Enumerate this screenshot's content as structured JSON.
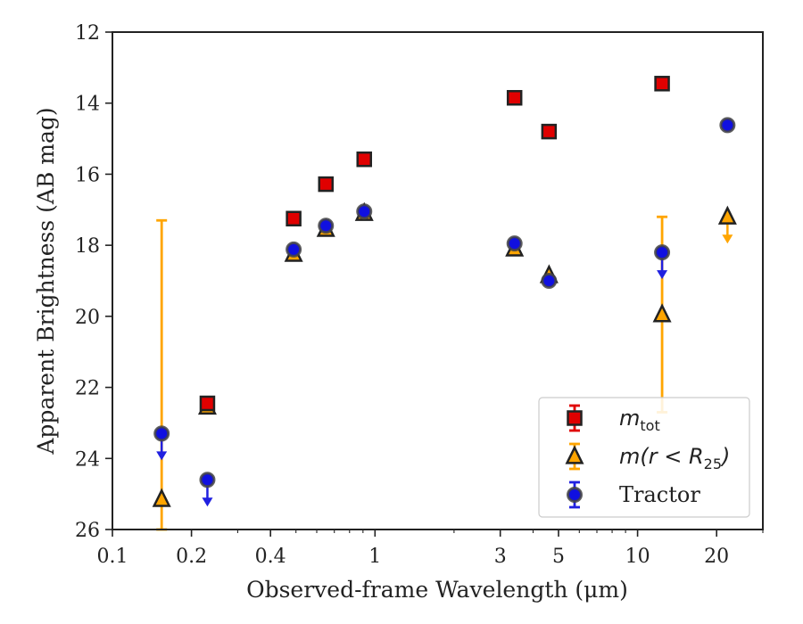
{
  "chart_data": {
    "type": "scatter",
    "title": "",
    "xlabel": "Observed-frame Wavelength (μm)",
    "ylabel": "Apparent Brightness (AB mag)",
    "xscale": "log",
    "xlim": [
      0.1,
      30
    ],
    "ylim": [
      26,
      12
    ],
    "y_inverted": true,
    "xticks": [
      0.1,
      0.2,
      0.4,
      1,
      3,
      5,
      10,
      20
    ],
    "xtick_labels": [
      "0.1",
      "0.2",
      "0.4",
      "1",
      "3",
      "5",
      "10",
      "20"
    ],
    "yticks": [
      12,
      14,
      16,
      18,
      20,
      22,
      24,
      26
    ],
    "ytick_labels": [
      "12",
      "14",
      "16",
      "18",
      "20",
      "22",
      "24",
      "26"
    ],
    "grid": false,
    "legend_position": "lower-right",
    "series": [
      {
        "name": "m_tot",
        "legend_main": "m",
        "legend_sub": "tot",
        "marker": "square",
        "color": "#e00000",
        "edge_color": "#222222",
        "errorbar_color": "#e00000",
        "points": [
          {
            "x": 0.23,
            "y": 22.45
          },
          {
            "x": 0.49,
            "y": 17.25
          },
          {
            "x": 0.65,
            "y": 16.28
          },
          {
            "x": 0.91,
            "y": 15.58
          },
          {
            "x": 3.4,
            "y": 13.85
          },
          {
            "x": 4.6,
            "y": 14.8
          },
          {
            "x": 12.4,
            "y": 13.45
          }
        ]
      },
      {
        "name": "m(r < R_25)",
        "legend_main": "m(r < R",
        "legend_sub": "25",
        "legend_end": ")",
        "marker": "triangle",
        "color": "#ffa500",
        "edge_color": "#222222",
        "errorbar_color": "#ffa500",
        "points": [
          {
            "x": 0.154,
            "y": 25.15,
            "err_up": 7.85,
            "err_down": 0.85
          },
          {
            "x": 0.23,
            "y": 22.55
          },
          {
            "x": 0.49,
            "y": 18.25
          },
          {
            "x": 0.65,
            "y": 17.55
          },
          {
            "x": 0.91,
            "y": 17.1
          },
          {
            "x": 3.4,
            "y": 18.1
          },
          {
            "x": 4.6,
            "y": 18.85
          },
          {
            "x": 12.4,
            "y": 19.95,
            "err_up": 2.75,
            "err_down": 2.75
          },
          {
            "x": 22.0,
            "y": 17.2,
            "upper_limit": true
          }
        ]
      },
      {
        "name": "Tractor",
        "legend_main": "Tractor",
        "marker": "circle",
        "color": "#1010e0",
        "edge_color": "#444444",
        "errorbar_color": "#2020e0",
        "points": [
          {
            "x": 0.154,
            "y": 23.3,
            "upper_limit": true
          },
          {
            "x": 0.23,
            "y": 24.6,
            "upper_limit": true
          },
          {
            "x": 0.49,
            "y": 18.12
          },
          {
            "x": 0.65,
            "y": 17.45
          },
          {
            "x": 0.91,
            "y": 17.05
          },
          {
            "x": 3.4,
            "y": 17.95
          },
          {
            "x": 4.6,
            "y": 19.0
          },
          {
            "x": 12.4,
            "y": 18.2,
            "upper_limit": true
          },
          {
            "x": 22.0,
            "y": 14.62
          }
        ]
      }
    ]
  }
}
